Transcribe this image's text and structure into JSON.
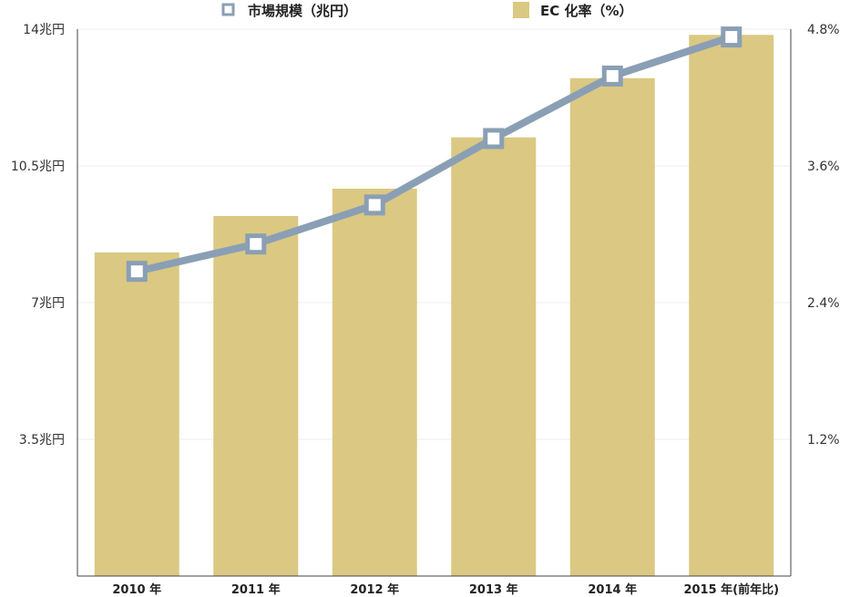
{
  "chart_data": {
    "type": "bar",
    "categories": [
      "2010 年",
      "2011 年",
      "2012 年",
      "2013 年",
      "2014 年",
      "2015 年(前年比)"
    ],
    "series": [
      {
        "name": "EC 化率（%）",
        "kind": "bar",
        "axis": "right",
        "values": [
          2.84,
          3.16,
          3.4,
          3.85,
          4.37,
          4.75
        ]
      },
      {
        "name": "市場規模（兆円）",
        "kind": "line",
        "axis": "left",
        "values": [
          7.8,
          8.5,
          9.5,
          11.2,
          12.8,
          13.8
        ]
      }
    ],
    "y_left": {
      "ylim": [
        0,
        14
      ],
      "ticks": [
        3.5,
        7,
        10.5,
        14
      ],
      "tick_labels": [
        "3.5兆円",
        "7兆円",
        "10.5兆円",
        "14兆円"
      ]
    },
    "y_right": {
      "ylim": [
        0,
        4.8
      ],
      "ticks": [
        1.2,
        2.4,
        3.6,
        4.8
      ],
      "tick_labels": [
        "1.2%",
        "2.4%",
        "3.6%",
        "4.8%"
      ]
    },
    "legend_position": "top",
    "grid": true
  },
  "colors": {
    "bar": "#dbc883",
    "line": "#8a9fb5",
    "marker_fill": "#ffffff",
    "grid": "#eeeeee",
    "axis": "#444444"
  }
}
